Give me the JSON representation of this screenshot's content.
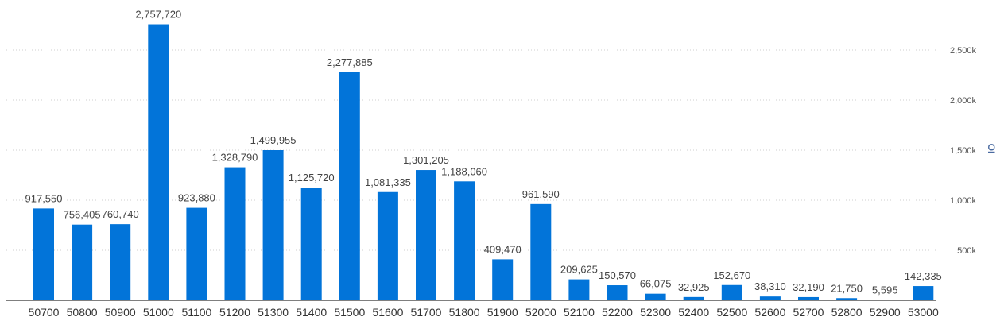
{
  "chart_data": {
    "type": "bar",
    "categories": [
      "50700",
      "50800",
      "50900",
      "51000",
      "51100",
      "51200",
      "51300",
      "51400",
      "51500",
      "51600",
      "51700",
      "51800",
      "51900",
      "52000",
      "52100",
      "52200",
      "52300",
      "52400",
      "52500",
      "52600",
      "52700",
      "52800",
      "52900",
      "53000"
    ],
    "series": [
      {
        "values": [
          917550,
          756405,
          760740,
          2757720,
          923880,
          1328790,
          1499955,
          1125720,
          2277885,
          1081335,
          1301205,
          1188060,
          409470,
          961590,
          209625,
          150570,
          66075,
          32925,
          152670,
          38310,
          32190,
          21750,
          5595,
          142335
        ],
        "color": "#0274d9"
      }
    ],
    "data_labels": [
      "917,550",
      "756,405",
      "760,740",
      "2,757,720",
      "923,880",
      "1,328,790",
      "1,499,955",
      "1,125,720",
      "2,277,885",
      "1,081,335",
      "1,301,205",
      "1,188,060",
      "409,470",
      "961,590",
      "209,625",
      "150,570",
      "66,075",
      "32,925",
      "152,670",
      "38,310",
      "32,190",
      "21,750",
      "5,595",
      "142,335"
    ],
    "ylabel": "OI",
    "ylim": [
      0,
      3000000
    ],
    "yticks": [
      500000,
      1000000,
      1500000,
      2000000,
      2500000
    ],
    "ytick_labels": [
      "500k",
      "1,000k",
      "1,500k",
      "2,000k",
      "2,500k"
    ],
    "y_axis_side": "right",
    "grid": true,
    "legend": "none",
    "axis_color": "#555555",
    "grid_color": "#cfcfcf"
  }
}
